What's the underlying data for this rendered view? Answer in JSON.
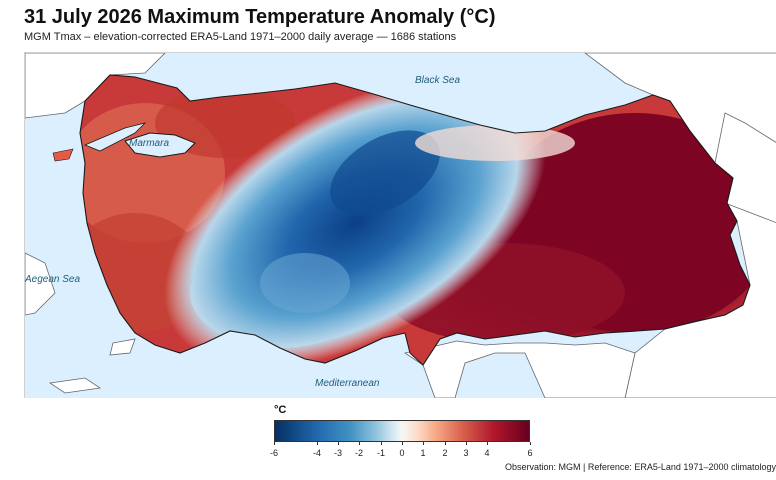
{
  "title": "31 July 2026 Maximum Temperature Anomaly (°C)",
  "subtitle": "MGM Tmax – elevation-corrected ERA5-Land 1971–2000 daily average — 1686 stations",
  "map": {
    "labels": {
      "black_sea": "Black Sea",
      "marmara": "Marmara",
      "aegean": "Aegean Sea",
      "mediterranean": "Mediterranean"
    },
    "colors": {
      "sea": "#dcefff",
      "land_outside": "#ffffff",
      "border": "#555555",
      "coast": "#1a1a1a"
    },
    "anomaly_summary": {
      "east_turkey": "warm (~ +5 to +6)",
      "central_anatolia": "cool (~ -3 to -5)",
      "west_coast": "warm (~ +2 to +4)"
    }
  },
  "legend": {
    "unit": "°C",
    "min": -6,
    "max": 6,
    "ticks": [
      "-6",
      "-4",
      "-3",
      "-2",
      "-1",
      "0",
      "1",
      "2",
      "3",
      "4",
      "6"
    ],
    "tick_values": [
      -6,
      -4,
      -3,
      -2,
      -1,
      0,
      1,
      2,
      3,
      4,
      6
    ],
    "colors": [
      "#053061",
      "#2166ac",
      "#4393c3",
      "#92c5de",
      "#d1e5f0",
      "#f7f7f7",
      "#fddbc7",
      "#f4a582",
      "#d6604d",
      "#b2182b",
      "#67001f"
    ]
  },
  "footer": "Observation: MGM   |   Reference: ERA5-Land 1971–2000 climatology"
}
